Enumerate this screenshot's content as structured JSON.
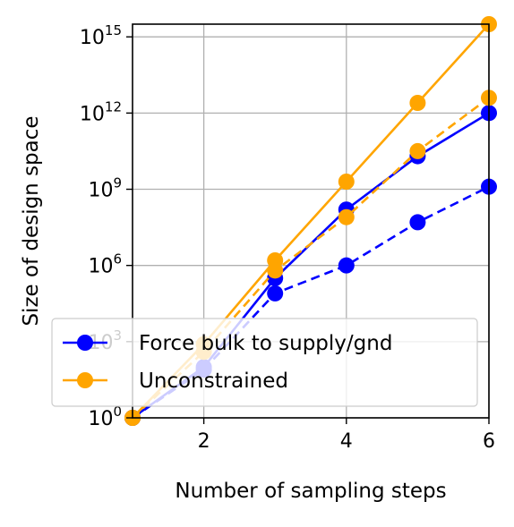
{
  "chart_data": {
    "type": "line",
    "title": "",
    "xlabel": "Number of sampling steps",
    "ylabel": "Size of design space",
    "xlim": [
      1,
      6
    ],
    "ylim_log10": [
      0,
      15.5
    ],
    "yscale": "log",
    "grid": true,
    "x_ticks": [
      2,
      4,
      6
    ],
    "y_ticks": [
      {
        "base": "10",
        "exp": "0"
      },
      {
        "base": "10",
        "exp": "3"
      },
      {
        "base": "10",
        "exp": "6"
      },
      {
        "base": "10",
        "exp": "9"
      },
      {
        "base": "10",
        "exp": "12"
      },
      {
        "base": "10",
        "exp": "15"
      }
    ],
    "legend": {
      "placement": "lower-left",
      "entries": [
        "Force bulk to supply/gnd",
        "Unconstrained"
      ]
    },
    "series": [
      {
        "name": "Force bulk to supply/gnd",
        "color": "#0000ff",
        "linestyle": "solid",
        "x": [
          1,
          2,
          3,
          4,
          5,
          6
        ],
        "log10_y": [
          0.0,
          2.0,
          5.5,
          8.2,
          10.3,
          12.0
        ]
      },
      {
        "name": "Force bulk to supply/gnd",
        "color": "#0000ff",
        "linestyle": "dashed",
        "x": [
          1,
          2,
          3,
          4,
          5,
          6
        ],
        "log10_y": [
          0.0,
          1.9,
          4.9,
          6.0,
          7.7,
          9.1
        ]
      },
      {
        "name": "Unconstrained",
        "color": "#ffa500",
        "linestyle": "solid",
        "x": [
          1,
          2,
          3,
          4,
          5,
          6
        ],
        "log10_y": [
          0.0,
          2.9,
          6.2,
          9.3,
          12.4,
          15.5
        ]
      },
      {
        "name": "Unconstrained",
        "color": "#ffa500",
        "linestyle": "dashed",
        "x": [
          1,
          2,
          3,
          4,
          5,
          6
        ],
        "log10_y": [
          0.0,
          2.6,
          5.8,
          7.9,
          10.5,
          12.6
        ]
      }
    ],
    "colors": {
      "blue": "#0000ff",
      "orange": "#ffa500",
      "grid": "#b0b0b0"
    }
  }
}
